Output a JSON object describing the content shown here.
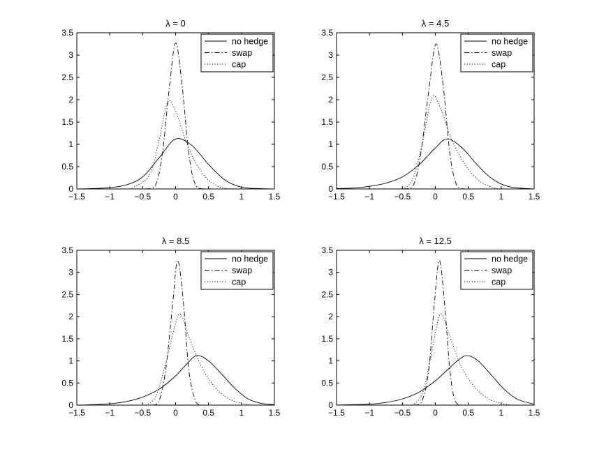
{
  "chart_data": [
    {
      "type": "line",
      "title": "λ = 0",
      "xlim": [
        -1.5,
        1.5
      ],
      "ylim": [
        0,
        3.5
      ],
      "xticks": [
        "−1.5",
        "−1",
        "−0.5",
        "0",
        "0.5",
        "1",
        "1.5"
      ],
      "yticks": [
        "0",
        "0.5",
        "1",
        "1.5",
        "2",
        "2.5",
        "3",
        "3.5"
      ],
      "legend_position": "top-right",
      "series": [
        {
          "name": "no hedge",
          "style": "solid",
          "x": [
            -1.5,
            -1.25,
            -1.0,
            -0.75,
            -0.5,
            -0.25,
            0.0,
            0.25,
            0.5,
            0.75,
            1.0,
            1.25,
            1.5
          ],
          "y": [
            0.0,
            0.01,
            0.03,
            0.09,
            0.27,
            0.7,
            1.12,
            0.97,
            0.55,
            0.2,
            0.04,
            0.01,
            0.0
          ]
        },
        {
          "name": "swap",
          "style": "dashdot",
          "x": [
            -0.45,
            -0.3,
            -0.2,
            -0.1,
            0.0,
            0.1,
            0.2,
            0.3,
            0.45
          ],
          "y": [
            0.0,
            0.1,
            0.8,
            2.2,
            3.27,
            2.3,
            0.8,
            0.1,
            0.0
          ]
        },
        {
          "name": "cap",
          "style": "dotted",
          "x": [
            -0.7,
            -0.4,
            -0.25,
            -0.12,
            0.0,
            0.15,
            0.3,
            0.5,
            0.7,
            0.9
          ],
          "y": [
            0.0,
            0.3,
            1.1,
            1.95,
            1.75,
            1.1,
            0.6,
            0.2,
            0.03,
            0.0
          ]
        }
      ]
    },
    {
      "type": "line",
      "title": "λ = 4.5",
      "xlim": [
        -1.5,
        1.5
      ],
      "ylim": [
        0,
        3.5
      ],
      "xticks": [
        "−1.5",
        "−1",
        "−0.5",
        "0",
        "0.5",
        "1",
        "1.5"
      ],
      "yticks": [
        "0",
        "0.5",
        "1",
        "1.5",
        "2",
        "2.5",
        "3",
        "3.5"
      ],
      "legend_position": "top-right",
      "series": [
        {
          "name": "no hedge",
          "style": "solid",
          "x": [
            -1.5,
            -1.25,
            -1.0,
            -0.75,
            -0.5,
            -0.25,
            0.0,
            0.18,
            0.4,
            0.6,
            0.8,
            1.0,
            1.2,
            1.5
          ],
          "y": [
            0.01,
            0.02,
            0.06,
            0.13,
            0.27,
            0.54,
            0.92,
            1.12,
            0.93,
            0.6,
            0.3,
            0.11,
            0.03,
            0.0
          ]
        },
        {
          "name": "swap",
          "style": "dashdot",
          "x": [
            -0.48,
            -0.33,
            -0.22,
            -0.1,
            0.01,
            0.12,
            0.22,
            0.32,
            0.45
          ],
          "y": [
            0.0,
            0.1,
            0.8,
            2.2,
            3.25,
            2.3,
            0.8,
            0.1,
            0.0
          ]
        },
        {
          "name": "cap",
          "style": "dotted",
          "x": [
            -0.5,
            -0.35,
            -0.2,
            -0.05,
            0.08,
            0.25,
            0.45,
            0.65,
            0.85,
            1.0
          ],
          "y": [
            0.0,
            0.2,
            1.0,
            2.05,
            1.8,
            1.1,
            0.55,
            0.2,
            0.04,
            0.0
          ]
        }
      ]
    },
    {
      "type": "line",
      "title": "λ = 8.5",
      "xlim": [
        -1.5,
        1.5
      ],
      "ylim": [
        0,
        3.5
      ],
      "xticks": [
        "−1.5",
        "−1",
        "−0.5",
        "0",
        "0.5",
        "1",
        "1.5"
      ],
      "yticks": [
        "0",
        "0.5",
        "1",
        "1.5",
        "2",
        "2.5",
        "3",
        "3.5"
      ],
      "legend_position": "top-right",
      "series": [
        {
          "name": "no hedge",
          "style": "solid",
          "x": [
            -1.5,
            -1.25,
            -1.0,
            -0.75,
            -0.5,
            -0.25,
            0.0,
            0.15,
            0.32,
            0.5,
            0.7,
            0.9,
            1.1,
            1.3,
            1.5
          ],
          "y": [
            0.0,
            0.01,
            0.03,
            0.08,
            0.18,
            0.36,
            0.66,
            0.9,
            1.12,
            1.0,
            0.7,
            0.38,
            0.14,
            0.04,
            0.01
          ]
        },
        {
          "name": "swap",
          "style": "dashdot",
          "x": [
            -0.35,
            -0.25,
            -0.15,
            -0.05,
            0.03,
            0.12,
            0.2,
            0.3,
            0.4
          ],
          "y": [
            0.0,
            0.1,
            0.8,
            2.2,
            3.27,
            2.3,
            0.8,
            0.1,
            0.0
          ]
        },
        {
          "name": "cap",
          "style": "dotted",
          "x": [
            -0.45,
            -0.3,
            -0.15,
            0.0,
            0.08,
            0.2,
            0.4,
            0.6,
            0.8,
            1.0,
            1.15
          ],
          "y": [
            0.0,
            0.2,
            0.95,
            1.85,
            2.05,
            1.55,
            0.85,
            0.4,
            0.15,
            0.04,
            0.0
          ]
        }
      ]
    },
    {
      "type": "line",
      "title": "λ = 12.5",
      "xlim": [
        -1.5,
        1.5
      ],
      "ylim": [
        0,
        3.5
      ],
      "xticks": [
        "−1.5",
        "−1",
        "−0.5",
        "0",
        "0.5",
        "1",
        "1.5"
      ],
      "yticks": [
        "0",
        "0.5",
        "1",
        "1.5",
        "2",
        "2.5",
        "3",
        "3.5"
      ],
      "legend_position": "top-right",
      "series": [
        {
          "name": "no hedge",
          "style": "solid",
          "x": [
            -1.5,
            -1.25,
            -1.0,
            -0.75,
            -0.5,
            -0.25,
            0.0,
            0.2,
            0.35,
            0.48,
            0.65,
            0.85,
            1.05,
            1.25,
            1.5
          ],
          "y": [
            0.0,
            0.01,
            0.02,
            0.06,
            0.14,
            0.29,
            0.55,
            0.82,
            1.02,
            1.12,
            1.0,
            0.68,
            0.35,
            0.13,
            0.02
          ]
        },
        {
          "name": "swap",
          "style": "dashdot",
          "x": [
            -0.32,
            -0.2,
            -0.1,
            -0.02,
            0.06,
            0.14,
            0.22,
            0.3,
            0.42
          ],
          "y": [
            0.0,
            0.1,
            0.8,
            2.2,
            3.27,
            2.3,
            0.8,
            0.1,
            0.0
          ]
        },
        {
          "name": "cap",
          "style": "dotted",
          "x": [
            -0.35,
            -0.2,
            -0.08,
            0.03,
            0.1,
            0.22,
            0.4,
            0.6,
            0.8,
            1.0,
            1.15
          ],
          "y": [
            0.0,
            0.25,
            1.0,
            1.85,
            2.05,
            1.55,
            0.85,
            0.4,
            0.15,
            0.04,
            0.0
          ]
        }
      ]
    }
  ]
}
